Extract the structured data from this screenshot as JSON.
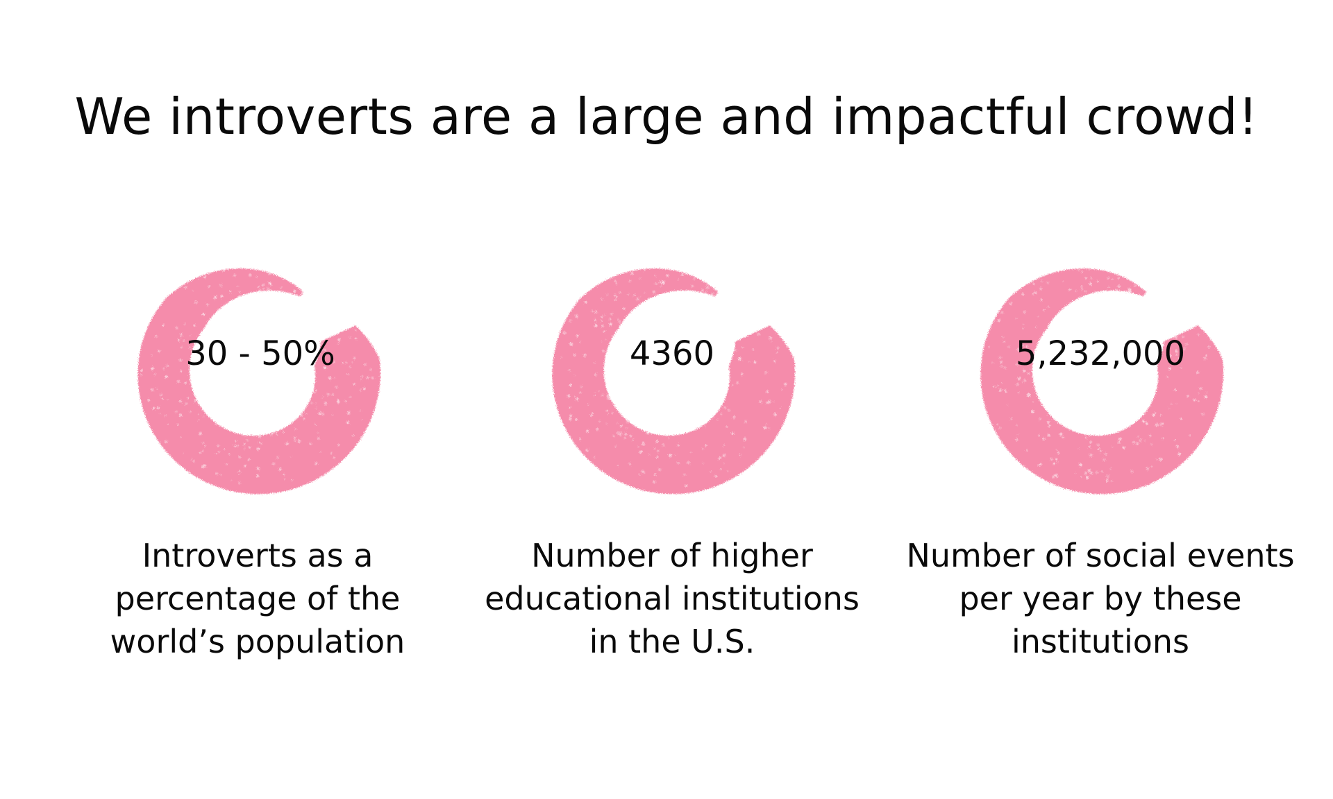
{
  "title": "We introverts are a large and impactful crowd!",
  "accent_color": "#f58cab",
  "stats": [
    {
      "value": "30 - 50%",
      "caption": "Introverts as a percentage of the world’s population",
      "icon": "crayon-circle-icon"
    },
    {
      "value": "4360",
      "caption": "Number of higher educational institutions in the U.S.",
      "icon": "crayon-circle-icon"
    },
    {
      "value": "5,232,000",
      "caption": "Number of social events per year by these institutions",
      "icon": "crayon-circle-icon"
    }
  ]
}
